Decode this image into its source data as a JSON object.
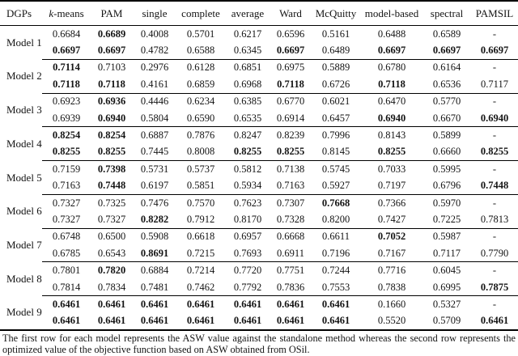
{
  "table": {
    "columns": [
      "DGPs",
      "k-means",
      "PAM",
      "single",
      "complete",
      "average",
      "Ward",
      "McQuitty",
      "model-based",
      "spectral",
      "PAMSIL"
    ],
    "models": [
      {
        "label": "Model 1",
        "rows": [
          {
            "values": [
              "0.6684",
              "0.6689",
              "0.4008",
              "0.5701",
              "0.6217",
              "0.6596",
              "0.5161",
              "0.6488",
              "0.6589",
              "-"
            ],
            "bold": [
              false,
              true,
              false,
              false,
              false,
              false,
              false,
              false,
              false,
              false
            ]
          },
          {
            "values": [
              "0.6697",
              "0.6697",
              "0.4782",
              "0.6588",
              "0.6345",
              "0.6697",
              "0.6489",
              "0.6697",
              "0.6697",
              "0.6697"
            ],
            "bold": [
              true,
              true,
              false,
              false,
              false,
              true,
              false,
              true,
              true,
              true
            ]
          }
        ]
      },
      {
        "label": "Model 2",
        "rows": [
          {
            "values": [
              "0.7114",
              "0.7103",
              "0.2976",
              "0.6128",
              "0.6851",
              "0.6975",
              "0.5889",
              "0.6780",
              "0.6164",
              "-"
            ],
            "bold": [
              true,
              false,
              false,
              false,
              false,
              false,
              false,
              false,
              false,
              false
            ]
          },
          {
            "values": [
              "0.7118",
              "0.7118",
              "0.4161",
              "0.6859",
              "0.6968",
              "0.7118",
              "0.6726",
              "0.7118",
              "0.6536",
              "0.7117"
            ],
            "bold": [
              true,
              true,
              false,
              false,
              false,
              true,
              false,
              true,
              false,
              false
            ]
          }
        ]
      },
      {
        "label": "Model 3",
        "rows": [
          {
            "values": [
              "0.6923",
              "0.6936",
              "0.4446",
              "0.6234",
              "0.6385",
              "0.6770",
              "0.6021",
              "0.6470",
              "0.5770",
              "-"
            ],
            "bold": [
              false,
              true,
              false,
              false,
              false,
              false,
              false,
              false,
              false,
              false
            ]
          },
          {
            "values": [
              "0.6939",
              "0.6940",
              "0.5804",
              "0.6590",
              "0.6535",
              "0.6914",
              "0.6457",
              "0.6940",
              "0.6670",
              "0.6940"
            ],
            "bold": [
              false,
              true,
              false,
              false,
              false,
              false,
              false,
              true,
              false,
              true
            ]
          }
        ]
      },
      {
        "label": "Model 4",
        "rows": [
          {
            "values": [
              "0.8254",
              "0.8254",
              "0.6887",
              "0.7876",
              "0.8247",
              "0.8239",
              "0.7996",
              "0.8143",
              "0.5899",
              "-"
            ],
            "bold": [
              true,
              true,
              false,
              false,
              false,
              false,
              false,
              false,
              false,
              false
            ]
          },
          {
            "values": [
              "0.8255",
              "0.8255",
              "0.7445",
              "0.8008",
              "0.8255",
              "0.8255",
              "0.8145",
              "0.8255",
              "0.6660",
              "0.8255"
            ],
            "bold": [
              true,
              true,
              false,
              false,
              true,
              true,
              false,
              true,
              false,
              true
            ]
          }
        ]
      },
      {
        "label": "Model 5",
        "rows": [
          {
            "values": [
              "0.7159",
              "0.7398",
              "0.5731",
              "0.5737",
              "0.5812",
              "0.7138",
              "0.5745",
              "0.7033",
              "0.5995",
              "-"
            ],
            "bold": [
              false,
              true,
              false,
              false,
              false,
              false,
              false,
              false,
              false,
              false
            ]
          },
          {
            "values": [
              "0.7163",
              "0.7448",
              "0.6197",
              "0.5851",
              "0.5934",
              "0.7163",
              "0.5927",
              "0.7197",
              "0.6796",
              "0.7448"
            ],
            "bold": [
              false,
              true,
              false,
              false,
              false,
              false,
              false,
              false,
              false,
              true
            ]
          }
        ]
      },
      {
        "label": "Model 6",
        "rows": [
          {
            "values": [
              "0.7327",
              "0.7325",
              "0.7476",
              "0.7570",
              "0.7623",
              "0.7307",
              "0.7668",
              "0.7366",
              "0.5970",
              "-"
            ],
            "bold": [
              false,
              false,
              false,
              false,
              false,
              false,
              true,
              false,
              false,
              false
            ]
          },
          {
            "values": [
              "0.7327",
              "0.7327",
              "0.8282",
              "0.7912",
              "0.8170",
              "0.7328",
              "0.8200",
              "0.7427",
              "0.7225",
              "0.7813"
            ],
            "bold": [
              false,
              false,
              true,
              false,
              false,
              false,
              false,
              false,
              false,
              false
            ]
          }
        ]
      },
      {
        "label": "Model 7",
        "rows": [
          {
            "values": [
              "0.6748",
              "0.6500",
              "0.5908",
              "0.6618",
              "0.6957",
              "0.6668",
              "0.6611",
              "0.7052",
              "0.5987",
              "-"
            ],
            "bold": [
              false,
              false,
              false,
              false,
              false,
              false,
              false,
              true,
              false,
              false
            ]
          },
          {
            "values": [
              "0.6785",
              "0.6543",
              "0.8691",
              "0.7215",
              "0.7693",
              "0.6911",
              "0.7196",
              "0.7167",
              "0.7117",
              "0.7790"
            ],
            "bold": [
              false,
              false,
              true,
              false,
              false,
              false,
              false,
              false,
              false,
              false
            ]
          }
        ]
      },
      {
        "label": "Model 8",
        "rows": [
          {
            "values": [
              "0.7801",
              "0.7820",
              "0.6884",
              "0.7214",
              "0.7720",
              "0.7751",
              "0.7244",
              "0.7716",
              "0.6045",
              "-"
            ],
            "bold": [
              false,
              true,
              false,
              false,
              false,
              false,
              false,
              false,
              false,
              false
            ]
          },
          {
            "values": [
              "0.7814",
              "0.7834",
              "0.7481",
              "0.7462",
              "0.7792",
              "0.7836",
              "0.7553",
              "0.7838",
              "0.6995",
              "0.7875"
            ],
            "bold": [
              false,
              false,
              false,
              false,
              false,
              false,
              false,
              false,
              false,
              true
            ]
          }
        ]
      },
      {
        "label": "Model 9",
        "rows": [
          {
            "values": [
              "0.6461",
              "0.6461",
              "0.6461",
              "0.6461",
              "0.6461",
              "0.6461",
              "0.6461",
              "0.1660",
              "0.5327",
              "-"
            ],
            "bold": [
              true,
              true,
              true,
              true,
              true,
              true,
              true,
              false,
              false,
              false
            ]
          },
          {
            "values": [
              "0.6461",
              "0.6461",
              "0.6461",
              "0.6461",
              "0.6461",
              "0.6461",
              "0.6461",
              "0.5520",
              "0.5709",
              "0.6461"
            ],
            "bold": [
              true,
              true,
              true,
              true,
              true,
              true,
              true,
              false,
              false,
              true
            ]
          }
        ]
      }
    ]
  },
  "footnote": "The first row for each model represents the ASW value against the standalone method whereas the second row represents the optimized value of the objective function based on ASW obtained from OSil."
}
